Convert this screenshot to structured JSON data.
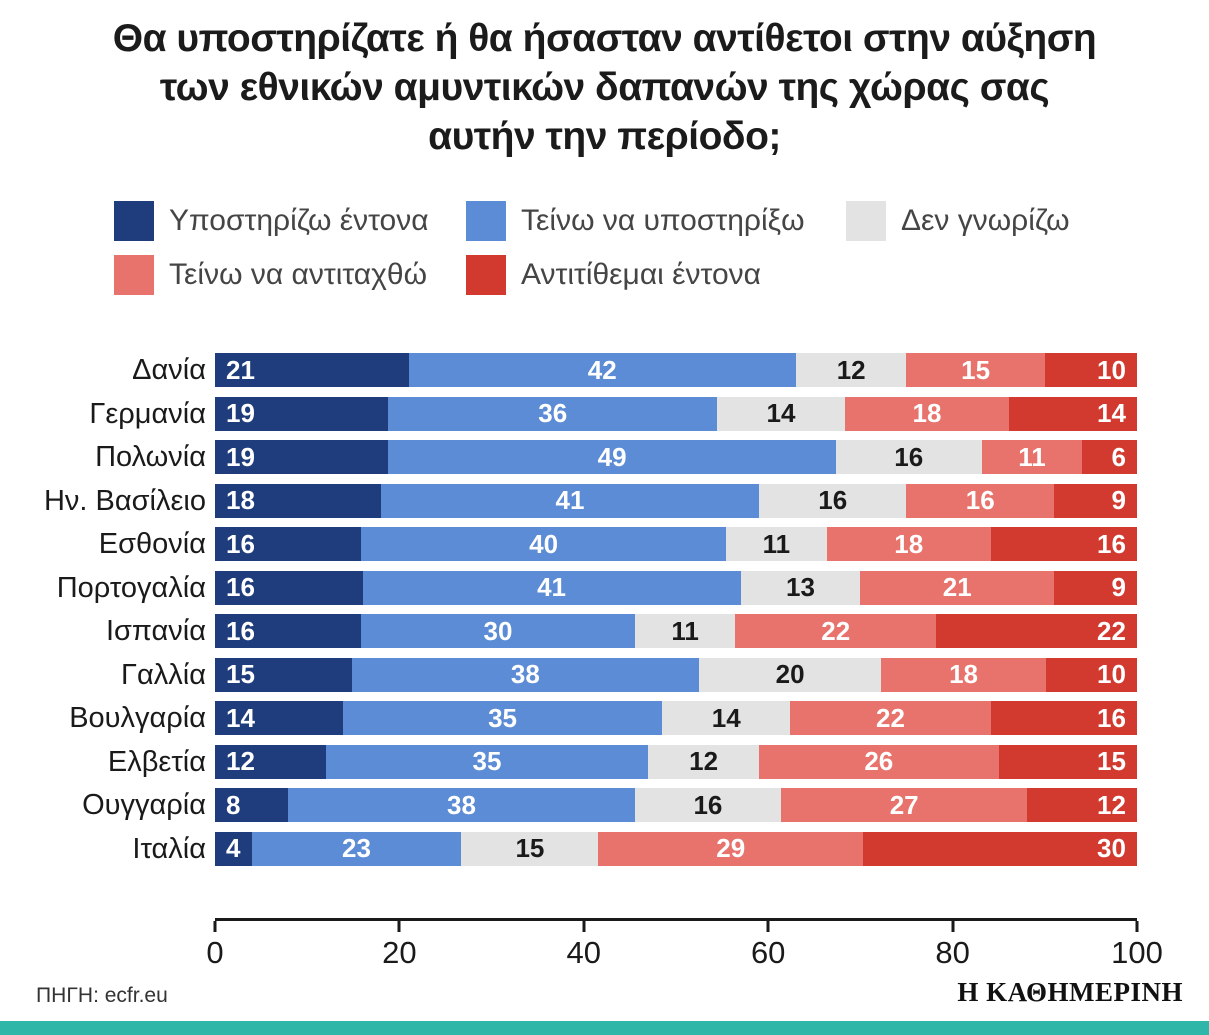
{
  "title": {
    "lines": [
      "Θα υποστηρίζατε ή θα ήσασταν αντίθετοι στην αύξηση",
      "των εθνικών αμυντικών δαπανών της χώρας σας",
      "αυτήν την περίοδο;"
    ]
  },
  "footer": {
    "source": "ΠΗΓΗ: ecfr.eu",
    "publisher": "Η ΚΑΘΗΜΕΡΙΝΗ"
  },
  "colors": {
    "bottom_stripe": "#2eb7a9",
    "axis": "#1a1a1a"
  },
  "chart_data": {
    "type": "bar",
    "orientation": "horizontal",
    "stacked": true,
    "title": "Θα υποστηρίζατε ή θα ήσασταν αντίθετοι στην αύξηση των εθνικών αμυντικών δαπανών της χώρας σας αυτήν την περίοδο;",
    "categories": [
      "Δανία",
      "Γερμανία",
      "Πολωνία",
      "Ην. Βασίλειο",
      "Εσθονία",
      "Πορτογαλία",
      "Ισπανία",
      "Γαλλία",
      "Βουλγαρία",
      "Ελβετία",
      "Ουγγαρία",
      "Ιταλία"
    ],
    "series": [
      {
        "name": "Υποστηρίζω έντονα",
        "color": "#1f3d7c",
        "text_color": "#ffffff",
        "values": [
          21,
          19,
          19,
          18,
          16,
          16,
          16,
          15,
          14,
          12,
          8,
          4
        ]
      },
      {
        "name": "Τείνω να υποστηρίξω",
        "color": "#5c8cd5",
        "text_color": "#ffffff",
        "values": [
          42,
          36,
          49,
          41,
          40,
          41,
          30,
          38,
          35,
          35,
          38,
          23
        ]
      },
      {
        "name": "Δεν γνωρίζω",
        "color": "#e3e3e3",
        "text_color": "#1a1a1a",
        "values": [
          12,
          14,
          16,
          16,
          11,
          13,
          11,
          20,
          14,
          12,
          16,
          15
        ]
      },
      {
        "name": "Τείνω να αντιταχθώ",
        "color": "#e8736c",
        "text_color": "#ffffff",
        "values": [
          15,
          18,
          11,
          16,
          18,
          21,
          22,
          18,
          22,
          26,
          27,
          29
        ]
      },
      {
        "name": "Αντιτίθεμαι έντονα",
        "color": "#d23a2f",
        "text_color": "#ffffff",
        "values": [
          10,
          14,
          6,
          9,
          16,
          9,
          22,
          10,
          16,
          15,
          12,
          30
        ]
      }
    ],
    "xticks": [
      0,
      20,
      40,
      60,
      80,
      100
    ],
    "xlim": [
      0,
      100
    ],
    "legend_position": "top",
    "grid": false
  }
}
